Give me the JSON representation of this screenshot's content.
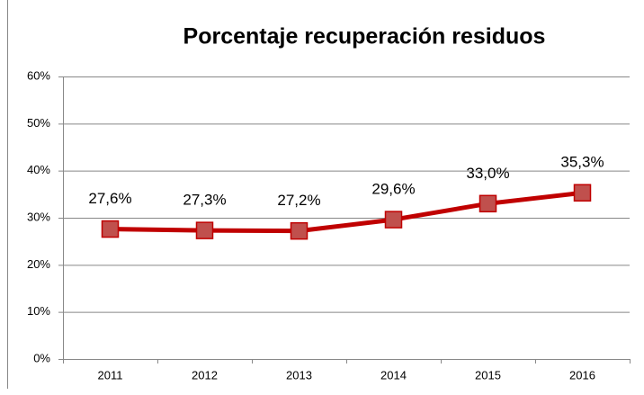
{
  "chart_data": {
    "type": "line",
    "title": "Porcentaje recuperación residuos",
    "categories": [
      "2011",
      "2012",
      "2013",
      "2014",
      "2015",
      "2016"
    ],
    "values": [
      27.6,
      27.3,
      27.2,
      29.6,
      33.0,
      35.3
    ],
    "value_labels": [
      "27,6%",
      "27,3%",
      "27,2%",
      "29,6%",
      "33,0%",
      "35,3%"
    ],
    "color": "#c00000",
    "marker_color": "#c0504d",
    "ylim": [
      0,
      60
    ],
    "yticks": [
      {
        "value": 0,
        "label": "0%"
      },
      {
        "value": 10,
        "label": "10%"
      },
      {
        "value": 20,
        "label": "20%"
      },
      {
        "value": 30,
        "label": "30%"
      },
      {
        "value": 40,
        "label": "40%"
      },
      {
        "value": 50,
        "label": "50%"
      },
      {
        "value": 60,
        "label": "60%"
      }
    ],
    "grid": true
  }
}
